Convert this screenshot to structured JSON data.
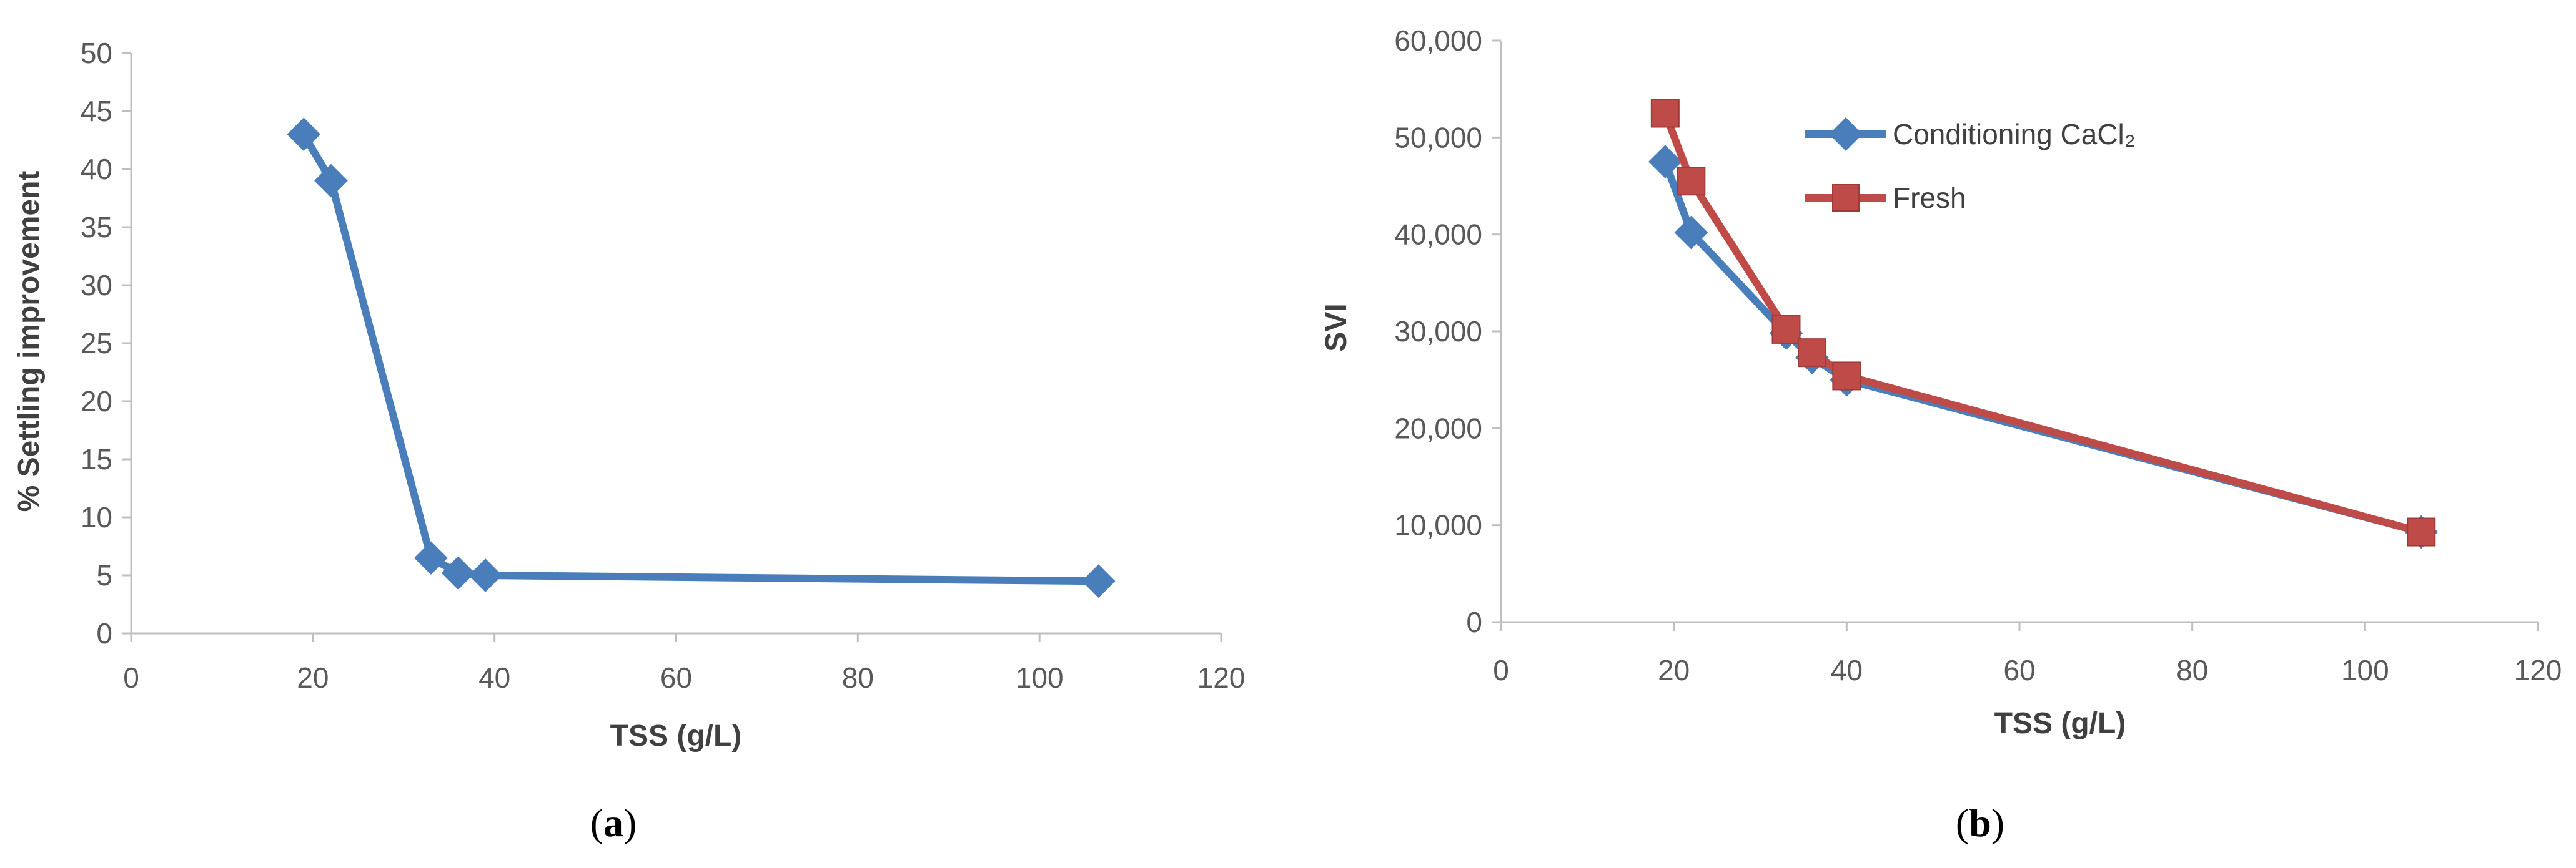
{
  "colors": {
    "blue": "#4a7ebb",
    "red": "#be4b48",
    "axis": "#bfbfbf"
  },
  "chart_data": [
    {
      "type": "line",
      "panel_label": "a",
      "xlabel": "TSS (g/L)",
      "ylabel": "% Settling improvement",
      "xlim": [
        0,
        120
      ],
      "ylim": [
        0,
        50
      ],
      "xticks": [
        0,
        20,
        40,
        60,
        80,
        100,
        120
      ],
      "yticks": [
        0,
        5,
        10,
        15,
        20,
        25,
        30,
        35,
        40,
        45,
        50
      ],
      "xtick_labels": [
        "0",
        "20",
        "40",
        "60",
        "80",
        "100",
        "120"
      ],
      "ytick_labels": [
        "0",
        "5",
        "10",
        "15",
        "20",
        "25",
        "30",
        "35",
        "40",
        "45",
        "50"
      ],
      "grid": false,
      "series": [
        {
          "marker": "diamond",
          "color": "#4a7ebb",
          "x": [
            19,
            22,
            33,
            36,
            39,
            106.5
          ],
          "y": [
            43,
            39,
            6.5,
            5.2,
            5,
            4.5
          ]
        }
      ]
    },
    {
      "type": "line",
      "panel_label": "b",
      "xlabel": "TSS (g/L)",
      "ylabel": "SVI",
      "xlim": [
        0,
        120
      ],
      "ylim": [
        0,
        60000
      ],
      "xticks": [
        0,
        20,
        40,
        60,
        80,
        100,
        120
      ],
      "yticks": [
        0,
        10000,
        20000,
        30000,
        40000,
        50000,
        60000
      ],
      "xtick_labels": [
        "0",
        "20",
        "40",
        "60",
        "80",
        "100",
        "120"
      ],
      "ytick_labels": [
        "0",
        "10,000",
        "20,000",
        "30,000",
        "40,000",
        "50,000",
        "60,000"
      ],
      "grid": false,
      "legend": "top-left",
      "series": [
        {
          "name": "Conditioning CaCl₂",
          "marker": "diamond",
          "color": "#4a7ebb",
          "x": [
            19,
            22,
            33,
            36,
            40,
            106.5
          ],
          "y": [
            47500,
            40200,
            29800,
            27300,
            25000,
            9300
          ]
        },
        {
          "name": "Fresh",
          "marker": "square",
          "color": "#be4b48",
          "x": [
            19,
            22,
            33,
            36,
            40,
            106.5
          ],
          "y": [
            52500,
            45500,
            30200,
            27800,
            25400,
            9300
          ]
        }
      ]
    }
  ]
}
